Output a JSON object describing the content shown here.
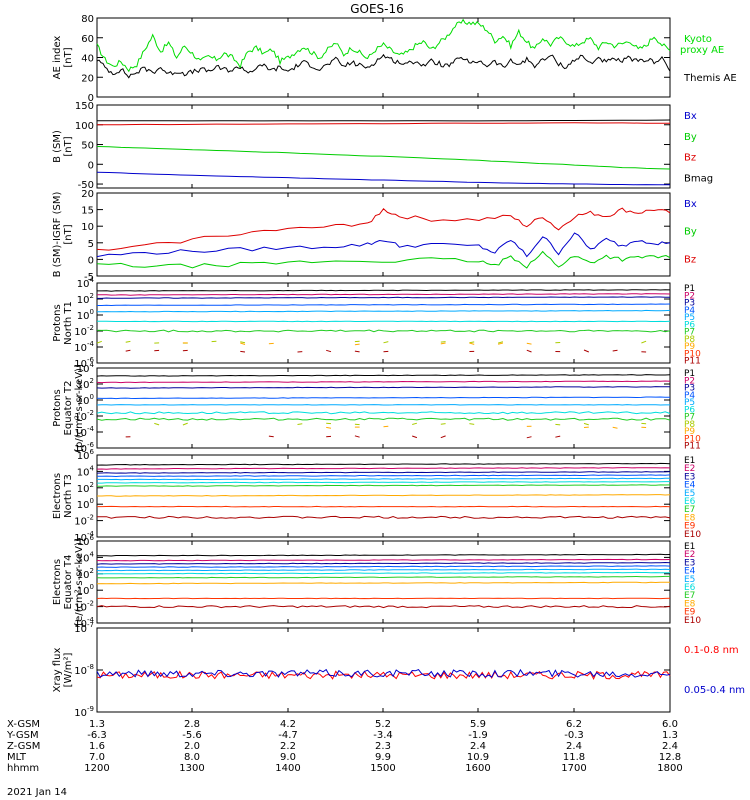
{
  "chart_data": {
    "title": "GOES-16",
    "type": "line",
    "date": "2021 Jan 14",
    "x_ticks": [
      "1200",
      "1300",
      "1400",
      "1500",
      "1600",
      "1700",
      "1800"
    ],
    "panels": [
      {
        "id": "ae",
        "ylabel": [
          "AE index",
          "[nT]"
        ],
        "ylim": [
          0,
          80
        ],
        "yticks": [
          "0",
          "20",
          "40",
          "60",
          "80"
        ],
        "series": [
          {
            "name": "Kyoto proxy AE",
            "color": "#00dd00",
            "x": [
              0,
              5,
              10,
              15,
              20,
              25,
              30,
              35,
              40,
              45,
              50,
              55,
              60,
              65,
              70,
              75,
              80,
              85,
              90,
              95,
              100,
              105,
              110,
              115,
              120,
              125,
              130,
              135,
              140,
              145,
              150,
              155,
              160,
              165,
              170,
              175,
              180,
              185,
              190,
              195,
              200,
              205,
              210,
              215,
              220,
              225,
              230,
              235,
              240,
              245,
              250,
              255,
              260,
              265,
              270,
              275,
              280,
              285,
              290,
              295,
              300,
              305,
              310,
              315,
              320,
              325,
              330,
              335,
              340,
              345,
              350,
              355,
              360
            ],
            "y": [
              52,
              38,
              31,
              36,
              28,
              33,
              48,
              62,
              46,
              55,
              40,
              52,
              44,
              36,
              41,
              38,
              44,
              40,
              32,
              46,
              50,
              44,
              48,
              36,
              40,
              46,
              51,
              45,
              40,
              48,
              55,
              43,
              50,
              45,
              39,
              48,
              53,
              47,
              42,
              45,
              52,
              56,
              48,
              55,
              62,
              72,
              76,
              75,
              74,
              68,
              57,
              62,
              52,
              66,
              56,
              48,
              60,
              53,
              60,
              56,
              51,
              56,
              59,
              50,
              56,
              52,
              54,
              57,
              48,
              52,
              62,
              53,
              47
            ]
          },
          {
            "name": "Themis AE",
            "color": "#000000",
            "x": [
              0,
              5,
              10,
              15,
              20,
              25,
              30,
              35,
              40,
              45,
              50,
              55,
              60,
              65,
              70,
              75,
              80,
              85,
              90,
              95,
              100,
              105,
              110,
              115,
              120,
              125,
              130,
              135,
              140,
              145,
              150,
              155,
              160,
              165,
              170,
              175,
              180,
              185,
              190,
              195,
              200,
              205,
              210,
              215,
              220,
              225,
              230,
              235,
              240,
              245,
              250,
              255,
              260,
              265,
              270,
              275,
              280,
              285,
              290,
              295,
              300,
              305,
              310,
              315,
              320,
              325,
              330,
              335,
              340,
              345,
              350,
              355,
              360
            ],
            "y": [
              38,
              30,
              24,
              28,
              21,
              25,
              29,
              25,
              30,
              23,
              26,
              24,
              25,
              28,
              26,
              30,
              28,
              27,
              31,
              25,
              29,
              32,
              27,
              30,
              26,
              31,
              35,
              32,
              28,
              33,
              38,
              31,
              35,
              32,
              30,
              36,
              42,
              38,
              35,
              33,
              37,
              32,
              36,
              34,
              31,
              36,
              40,
              33,
              37,
              32,
              36,
              30,
              36,
              33,
              38,
              32,
              37,
              42,
              34,
              30,
              38,
              41,
              34,
              40,
              35,
              38,
              36,
              40,
              35,
              38,
              36,
              40,
              26
            ]
          }
        ]
      },
      {
        "id": "b",
        "ylabel": [
          "B (SM)",
          "[nT]"
        ],
        "ylim": [
          -60,
          150
        ],
        "yticks": [
          "-50",
          "0",
          "50",
          "100",
          "150"
        ],
        "series": [
          {
            "name": "Bx",
            "color": "#0000cc",
            "x": [
              0,
              30,
              60,
              90,
              120,
              150,
              180,
              210,
              240,
              270,
              300,
              330,
              360
            ],
            "y": [
              -20,
              -24,
              -28,
              -31,
              -34,
              -37,
              -40,
              -43,
              -46,
              -48,
              -50,
              -51,
              -52
            ]
          },
          {
            "name": "By",
            "color": "#00cc00",
            "x": [
              0,
              30,
              60,
              90,
              120,
              150,
              180,
              210,
              240,
              270,
              300,
              330,
              360
            ],
            "y": [
              45,
              41,
              37,
              33,
              29,
              24,
              20,
              15,
              10,
              4,
              -2,
              -8,
              -12
            ]
          },
          {
            "name": "Bz",
            "color": "#dd0000",
            "x": [
              0,
              60,
              120,
              180,
              240,
              300,
              360
            ],
            "y": [
              100,
              101,
              102,
              103,
              104,
              105,
              104
            ]
          },
          {
            "name": "Bmag",
            "color": "#000000",
            "x": [
              0,
              60,
              120,
              180,
              240,
              300,
              360
            ],
            "y": [
              110,
              110,
              110,
              110,
              110,
              111,
              112
            ]
          }
        ]
      },
      {
        "id": "dbigrf",
        "ylabel": [
          "B (SM)-IGRF (SM)",
          "[nT]"
        ],
        "ylim": [
          -5,
          20
        ],
        "yticks": [
          "-5",
          "0",
          "5",
          "10",
          "15",
          "20"
        ],
        "series": [
          {
            "name": "Bx",
            "color": "#0000cc",
            "x": [
              0,
              30,
              60,
              90,
              120,
              150,
              170,
              180,
              190,
              210,
              240,
              250,
              260,
              270,
              280,
              290,
              300,
              310,
              320,
              330,
              340,
              350,
              360
            ],
            "y": [
              1,
              2,
              2.5,
              3,
              3.5,
              4,
              4.5,
              6,
              4,
              4.5,
              4,
              2,
              6,
              1,
              7,
              2,
              8,
              3,
              6,
              4,
              6,
              5,
              5
            ]
          },
          {
            "name": "By",
            "color": "#00cc00",
            "x": [
              0,
              30,
              60,
              90,
              120,
              150,
              180,
              210,
              240,
              250,
              260,
              270,
              280,
              290,
              300,
              310,
              320,
              330,
              340,
              350,
              360
            ],
            "y": [
              -1.5,
              -2,
              -2,
              -1.5,
              -1,
              -0.5,
              -0.5,
              0,
              -0.5,
              -2,
              1,
              -2,
              2,
              -2,
              1,
              -1,
              1,
              0,
              0.5,
              1,
              0.5
            ]
          },
          {
            "name": "Bz",
            "color": "#dd0000",
            "x": [
              0,
              30,
              60,
              90,
              120,
              150,
              170,
              180,
              190,
              210,
              240,
              260,
              270,
              280,
              290,
              300,
              310,
              320,
              330,
              340,
              350,
              360
            ],
            "y": [
              2.5,
              4,
              6,
              8,
              9,
              10,
              11,
              15,
              13,
              12,
              12,
              13,
              10,
              13,
              9,
              13,
              14,
              13,
              15,
              14,
              15,
              14
            ]
          }
        ]
      },
      {
        "id": "prot1",
        "ylabel": [
          "Protons",
          "North T1"
        ],
        "ylog": true,
        "ylim": [
          -6,
          4
        ],
        "yticks": [
          4,
          2,
          0,
          -2,
          -4,
          -6
        ],
        "channels": [
          {
            "name": "P1",
            "color": "#000000",
            "level": 3.0
          },
          {
            "name": "P2",
            "color": "#cc0066",
            "level": 2.5
          },
          {
            "name": "P3",
            "color": "#000099",
            "level": 2.1
          },
          {
            "name": "P4",
            "color": "#0055ff",
            "level": 1.2
          },
          {
            "name": "P5",
            "color": "#00aaff",
            "level": 0.4
          },
          {
            "name": "P6",
            "color": "#00dddd",
            "level": -0.8
          },
          {
            "name": "P7",
            "color": "#22cc22",
            "level": -2.0
          },
          {
            "name": "P8",
            "color": "#aacc00",
            "level": -3.4
          },
          {
            "name": "P9",
            "color": "#ffaa00",
            "level": -3.6
          },
          {
            "name": "P10",
            "color": "#ff3300",
            "level": null
          },
          {
            "name": "P11",
            "color": "#aa0000",
            "level": -4.5
          }
        ]
      },
      {
        "id": "prot2",
        "ylabel": [
          "Protons",
          "Equator T2",
          "[p/(cm²-s-sr-keV)]"
        ],
        "ylog": true,
        "ylim": [
          -6,
          4
        ],
        "yticks": [
          4,
          2,
          0,
          -2,
          -4,
          -6
        ],
        "channels": [
          {
            "name": "P1",
            "color": "#000000",
            "level": 3.0
          },
          {
            "name": "P2",
            "color": "#cc0066",
            "level": 2.2
          },
          {
            "name": "P3",
            "color": "#000099",
            "level": 1.5
          },
          {
            "name": "P4",
            "color": "#0055ff",
            "level": 0.2
          },
          {
            "name": "P5",
            "color": "#00aaff",
            "level": -0.6
          },
          {
            "name": "P6",
            "color": "#00dddd",
            "level": -1.6
          },
          {
            "name": "P7",
            "color": "#22cc22",
            "level": -2.4
          },
          {
            "name": "P8",
            "color": "#aacc00",
            "level": -3.0
          },
          {
            "name": "P9",
            "color": "#ffaa00",
            "level": -3.4
          },
          {
            "name": "P10",
            "color": "#ff3300",
            "level": null
          },
          {
            "name": "P11",
            "color": "#aa0000",
            "level": -4.6
          }
        ]
      },
      {
        "id": "elec1",
        "ylabel": [
          "Electrons",
          "North T3"
        ],
        "ylog": true,
        "ylim": [
          -4,
          6
        ],
        "yticks": [
          6,
          4,
          2,
          0,
          -2,
          -4
        ],
        "channels": [
          {
            "name": "E1",
            "color": "#000000",
            "level": 4.8
          },
          {
            "name": "E2",
            "color": "#cc0066",
            "level": 4.3
          },
          {
            "name": "E3",
            "color": "#000099",
            "level": 3.8
          },
          {
            "name": "E4",
            "color": "#0055ff",
            "level": 3.4
          },
          {
            "name": "E5",
            "color": "#00aaff",
            "level": 3.0
          },
          {
            "name": "E6",
            "color": "#00dddd",
            "level": 2.6
          },
          {
            "name": "E7",
            "color": "#22cc22",
            "level": 2.2
          },
          {
            "name": "E8",
            "color": "#ffaa00",
            "level": 1.0
          },
          {
            "name": "E9",
            "color": "#ff3300",
            "level": -0.3
          },
          {
            "name": "E10",
            "color": "#aa0000",
            "level": -1.6
          }
        ]
      },
      {
        "id": "elec2",
        "ylabel": [
          "Electrons",
          "Equator T4",
          "[e/(cm²-s-sr-keV)]"
        ],
        "ylog": true,
        "ylim": [
          -4,
          6
        ],
        "yticks": [
          6,
          4,
          2,
          0,
          -2,
          -4
        ],
        "channels": [
          {
            "name": "E1",
            "color": "#000000",
            "level": 4.2
          },
          {
            "name": "E2",
            "color": "#cc0066",
            "level": 3.6
          },
          {
            "name": "E3",
            "color": "#000099",
            "level": 3.2
          },
          {
            "name": "E4",
            "color": "#0055ff",
            "level": 2.8
          },
          {
            "name": "E5",
            "color": "#00aaff",
            "level": 2.4
          },
          {
            "name": "E6",
            "color": "#00dddd",
            "level": 2.0
          },
          {
            "name": "E7",
            "color": "#22cc22",
            "level": 1.5
          },
          {
            "name": "E8",
            "color": "#ffaa00",
            "level": 0.8
          },
          {
            "name": "E9",
            "color": "#ff3300",
            "level": -1.0
          },
          {
            "name": "E10",
            "color": "#aa0000",
            "level": -2.0
          }
        ]
      },
      {
        "id": "xray",
        "ylabel": [
          "Xray flux",
          "[W/m²]"
        ],
        "ylog": true,
        "ylim": [
          -9,
          -7
        ],
        "yticks": [
          -7,
          -8,
          -9
        ],
        "series": [
          {
            "name": "0.1-0.8 nm",
            "color": "#ff0000",
            "level": -8.12
          },
          {
            "name": "0.05-0.4 nm",
            "color": "#0000cc",
            "level": -8.08
          }
        ]
      }
    ],
    "ephemeris": {
      "labels": [
        "X-GSM",
        "Y-GSM",
        "Z-GSM",
        "MLT",
        "hhmm"
      ],
      "rows": [
        [
          "1.3",
          "2.8",
          "4.2",
          "5.2",
          "5.9",
          "6.2",
          "6.0"
        ],
        [
          "-6.3",
          "-5.6",
          "-4.7",
          "-3.4",
          "-1.9",
          "-0.3",
          "1.3"
        ],
        [
          "1.6",
          "2.0",
          "2.2",
          "2.3",
          "2.4",
          "2.4",
          "2.4"
        ],
        [
          "7.0",
          "8.0",
          "9.0",
          "9.9",
          "10.9",
          "11.8",
          "12.8"
        ],
        [
          "1200",
          "1300",
          "1400",
          "1500",
          "1600",
          "1700",
          "1800"
        ]
      ]
    }
  }
}
